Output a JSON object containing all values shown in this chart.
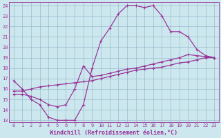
{
  "bg_color": "#cce8ee",
  "grid_color": "#99bbcc",
  "line_color": "#993399",
  "marker": "+",
  "linewidth": 0.9,
  "markersize": 3,
  "xlabel": "Windchill (Refroidissement éolien,°C)",
  "xlabel_fontsize": 6,
  "tick_fontsize": 5,
  "xlim": [
    -0.5,
    23.5
  ],
  "ylim": [
    12.8,
    24.3
  ],
  "yticks": [
    13,
    14,
    15,
    16,
    17,
    18,
    19,
    20,
    21,
    22,
    23,
    24
  ],
  "xticks": [
    0,
    1,
    2,
    3,
    4,
    5,
    6,
    7,
    8,
    9,
    10,
    11,
    12,
    13,
    14,
    15,
    16,
    17,
    18,
    19,
    20,
    21,
    22,
    23
  ],
  "line1_x": [
    0,
    1,
    2,
    3,
    4,
    5,
    6,
    7,
    8,
    9,
    10,
    11,
    12,
    13,
    14,
    15,
    16,
    17,
    18,
    19,
    20,
    21,
    22,
    23
  ],
  "line1_y": [
    16.8,
    16.0,
    15.0,
    14.5,
    13.3,
    13.0,
    13.0,
    13.0,
    14.5,
    18.0,
    20.6,
    21.8,
    23.2,
    24.0,
    24.0,
    23.8,
    24.0,
    23.0,
    21.5,
    21.5,
    21.0,
    19.8,
    19.2,
    19.0
  ],
  "line2_x": [
    0,
    1,
    2,
    3,
    4,
    5,
    6,
    7,
    8,
    9,
    10,
    11,
    12,
    13,
    14,
    15,
    16,
    17,
    18,
    19,
    20,
    21,
    22,
    23
  ],
  "line2_y": [
    15.5,
    15.5,
    15.3,
    15.0,
    14.5,
    14.3,
    14.5,
    16.0,
    18.2,
    17.2,
    17.3,
    17.5,
    17.7,
    17.9,
    18.0,
    18.2,
    18.4,
    18.6,
    18.8,
    19.0,
    19.3,
    19.2,
    19.1,
    19.0
  ],
  "line3_x": [
    0,
    1,
    2,
    3,
    4,
    5,
    6,
    7,
    8,
    9,
    10,
    11,
    12,
    13,
    14,
    15,
    16,
    17,
    18,
    19,
    20,
    21,
    22,
    23
  ],
  "line3_y": [
    15.8,
    15.8,
    16.0,
    16.2,
    16.3,
    16.4,
    16.5,
    16.6,
    16.7,
    16.8,
    17.0,
    17.2,
    17.4,
    17.6,
    17.8,
    17.9,
    18.0,
    18.1,
    18.3,
    18.5,
    18.6,
    18.8,
    19.0,
    19.0
  ]
}
